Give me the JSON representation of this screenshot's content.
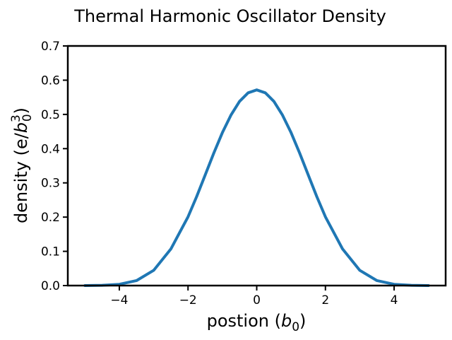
{
  "chart_data": {
    "type": "line",
    "title": "Thermal Harmonic Oscillator Density",
    "xlabel": "postion (b0)",
    "ylabel": "density (e/b0^3)",
    "xlabel_parts": {
      "pre": "postion (",
      "var": "b",
      "sub": "0",
      "post": ")"
    },
    "ylabel_parts": {
      "pre": "density (e/",
      "var": "b",
      "sub": "0",
      "sup": "3",
      "post": ")"
    },
    "xlim": [
      -5.5,
      5.5
    ],
    "ylim": [
      0,
      0.7
    ],
    "xticks": [
      -4,
      -2,
      0,
      2,
      4
    ],
    "xtick_labels": [
      "−4",
      "−2",
      "0",
      "2",
      "4"
    ],
    "yticks": [
      0.0,
      0.1,
      0.2,
      0.3,
      0.4,
      0.5,
      0.6,
      0.7
    ],
    "ytick_labels": [
      "0.0",
      "0.1",
      "0.2",
      "0.3",
      "0.4",
      "0.5",
      "0.6",
      "0.7"
    ],
    "grid": false,
    "series": [
      {
        "color": "#1f77b4",
        "x": [
          -5.0,
          -4.5,
          -4.0,
          -3.5,
          -3.0,
          -2.5,
          -2.0,
          -1.75,
          -1.5,
          -1.25,
          -1.0,
          -0.75,
          -0.5,
          -0.25,
          0.0,
          0.25,
          0.5,
          0.75,
          1.0,
          1.25,
          1.5,
          1.75,
          2.0,
          2.5,
          3.0,
          3.5,
          4.0,
          4.5,
          5.0
        ],
        "y": [
          0.0001,
          0.0007,
          0.0037,
          0.0145,
          0.0445,
          0.1068,
          0.2008,
          0.2597,
          0.3231,
          0.3869,
          0.4467,
          0.498,
          0.5381,
          0.5631,
          0.5716,
          0.5631,
          0.5381,
          0.498,
          0.4467,
          0.3869,
          0.3231,
          0.2597,
          0.2008,
          0.1068,
          0.0445,
          0.0145,
          0.0037,
          0.0007,
          0.0001
        ]
      }
    ]
  }
}
